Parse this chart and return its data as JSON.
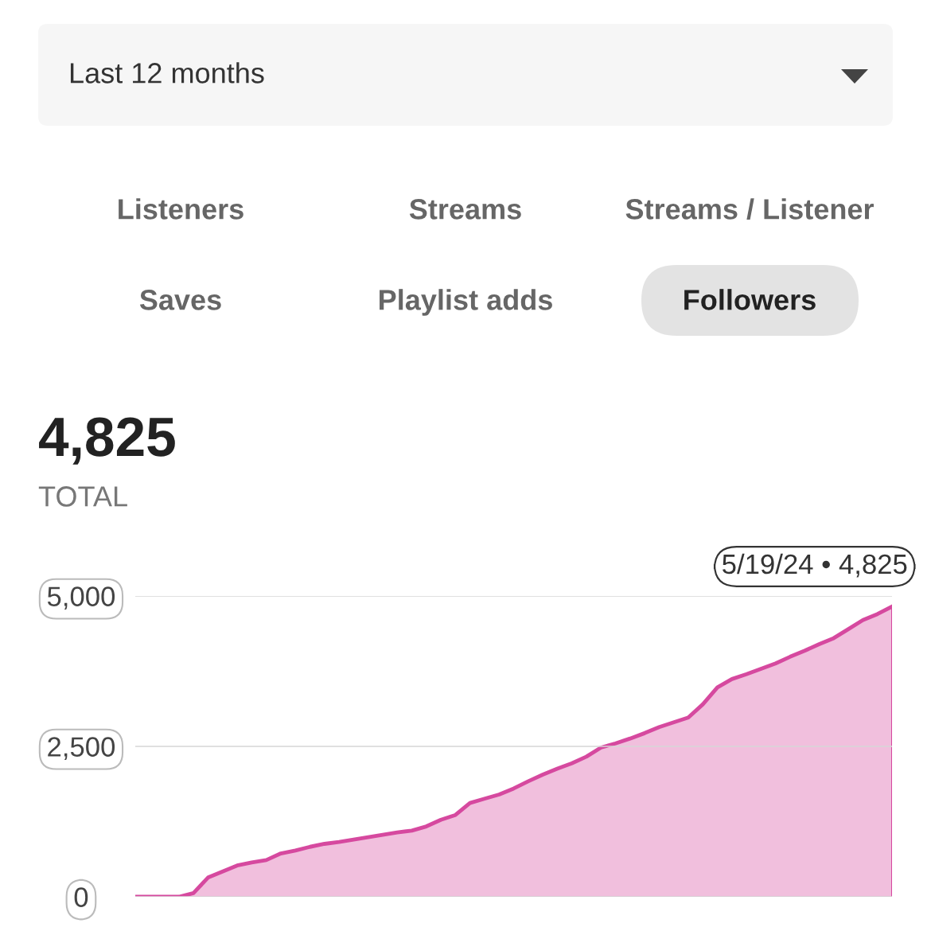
{
  "chart_data": {
    "type": "area",
    "title": "4,825",
    "subtitle": "TOTAL",
    "annotations": [
      "Last 12 months",
      "Listeners",
      "Streams",
      "Streams / Listener",
      "Saves",
      "Playlist adds",
      "Followers",
      "5/19/24 • 4,825"
    ],
    "categories": [
      null,
      null,
      null,
      null,
      null,
      null,
      null,
      null,
      null,
      null,
      null,
      null,
      null,
      null,
      null,
      null,
      null,
      null,
      null,
      null,
      null,
      null,
      null,
      null,
      null,
      null,
      null,
      null,
      null,
      null,
      null,
      null,
      null,
      null,
      null,
      null,
      null,
      null,
      null,
      null,
      null,
      null,
      null,
      null,
      null,
      null,
      null,
      null,
      null,
      null,
      null,
      null,
      null
    ],
    "series": [
      {
        "color": "#d6499f",
        "values": [
          0,
          0,
          0,
          0,
          60,
          320,
          420,
          520,
          570,
          610,
          720,
          770,
          830,
          880,
          910,
          950,
          990,
          1030,
          1070,
          1100,
          1170,
          1280,
          1360,
          1560,
          1630,
          1700,
          1800,
          1920,
          2030,
          2130,
          2220,
          2330,
          2480,
          2550,
          2630,
          2720,
          2820,
          2900,
          2980,
          3200,
          3480,
          3620,
          3700,
          3790,
          3880,
          3990,
          4090,
          4200,
          4300,
          4450,
          4600,
          4700,
          4825
        ]
      }
    ],
    "ylim": [
      0,
      5000
    ],
    "yticks": [
      {
        "value": 0,
        "label": "0"
      },
      {
        "value": 2500,
        "label": "2,500"
      },
      {
        "value": 5000,
        "label": "5,000"
      }
    ],
    "grid": "y"
  }
}
